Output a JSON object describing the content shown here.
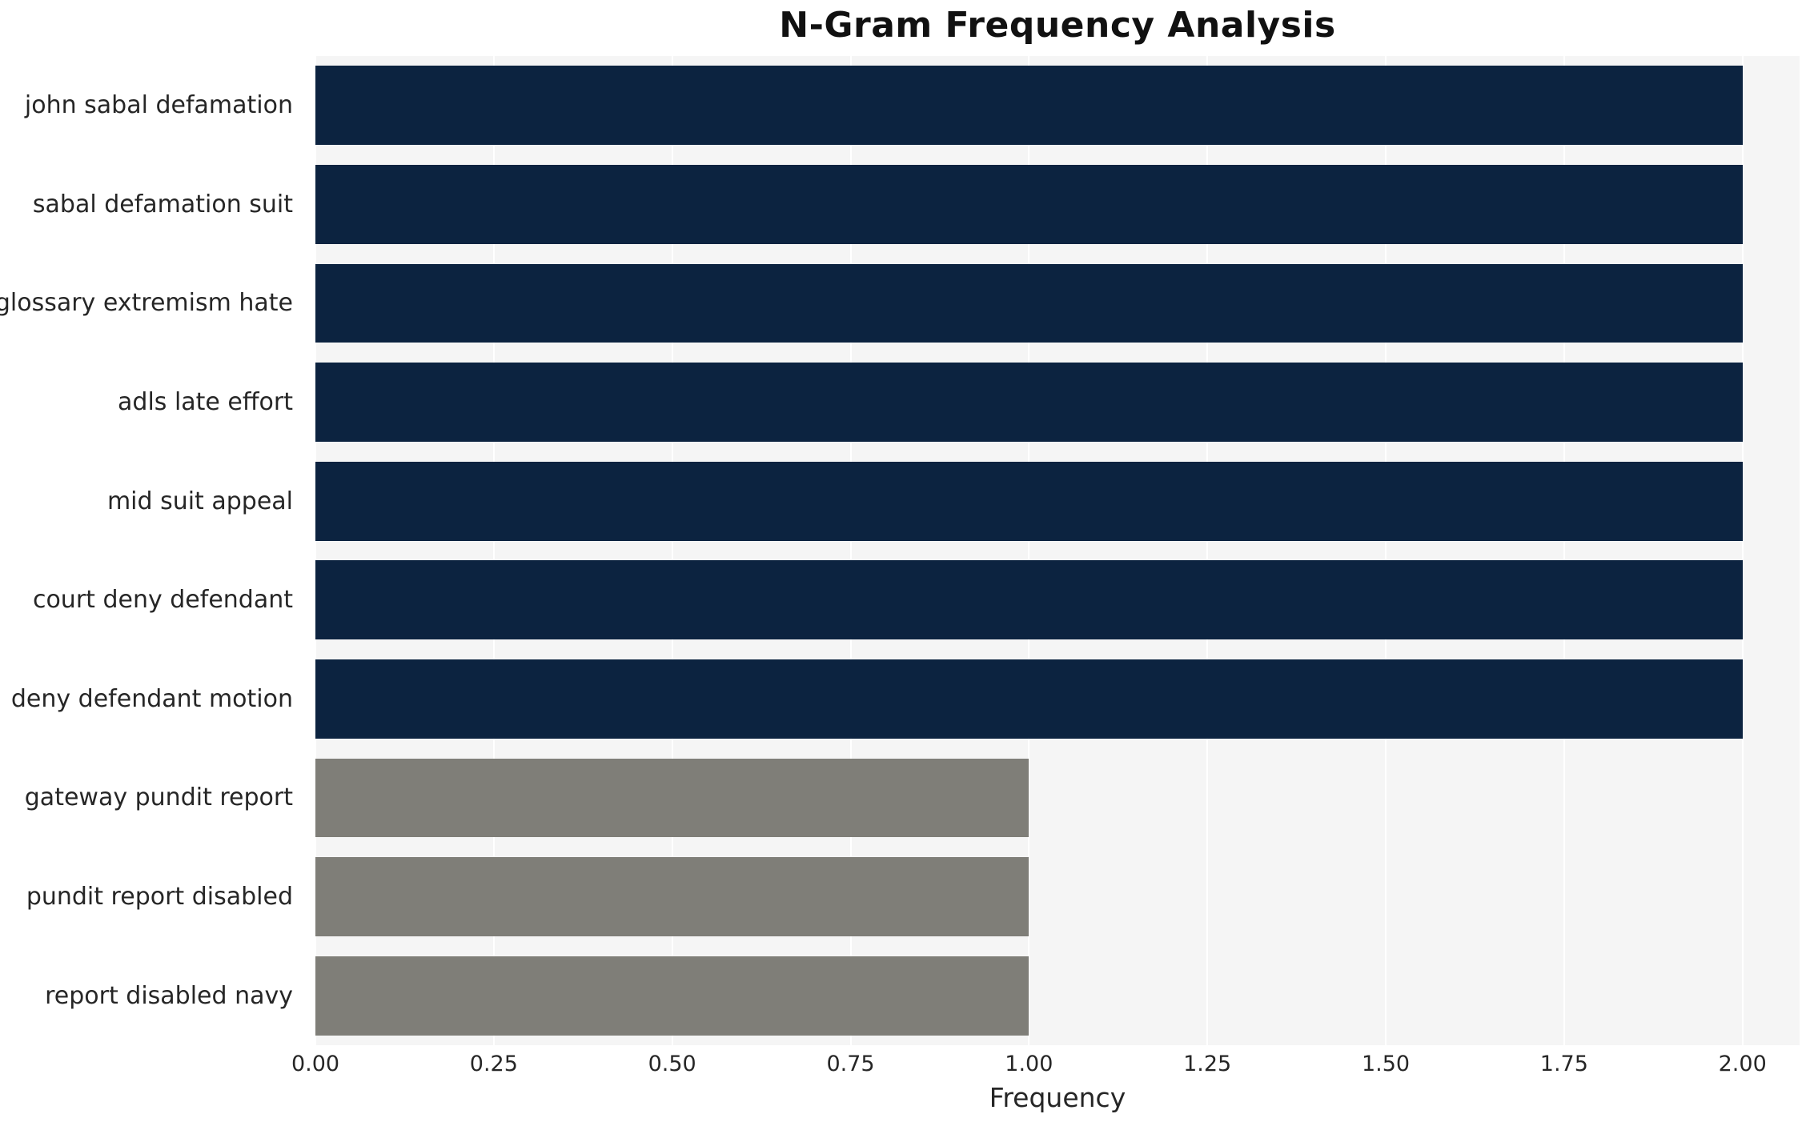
{
  "chart_data": {
    "type": "bar",
    "orientation": "horizontal",
    "title": "N-Gram Frequency Analysis",
    "xlabel": "Frequency",
    "ylabel": "",
    "categories": [
      "john sabal defamation",
      "sabal defamation suit",
      "glossary extremism hate",
      "adls late effort",
      "mid suit appeal",
      "court deny defendant",
      "deny defendant motion",
      "gateway pundit report",
      "pundit report disabled",
      "report disabled navy"
    ],
    "values": [
      2,
      2,
      2,
      2,
      2,
      2,
      2,
      1,
      1,
      1
    ],
    "bar_colors": [
      "#0c2340",
      "#0c2340",
      "#0c2340",
      "#0c2340",
      "#0c2340",
      "#0c2340",
      "#0c2340",
      "#7f7e78",
      "#7f7e78",
      "#7f7e78"
    ],
    "xlim": [
      0,
      2.08
    ],
    "xticks": [
      "0.00",
      "0.25",
      "0.50",
      "0.75",
      "1.00",
      "1.25",
      "1.50",
      "1.75",
      "2.00"
    ],
    "xtick_values": [
      0,
      0.25,
      0.5,
      0.75,
      1.0,
      1.25,
      1.5,
      1.75,
      2.0
    ],
    "grid": true,
    "legend": "none",
    "plot_bg_color": "#f5f5f5",
    "grid_color": "#ffffff",
    "text_color": "#262626",
    "title_color": "#111111"
  }
}
